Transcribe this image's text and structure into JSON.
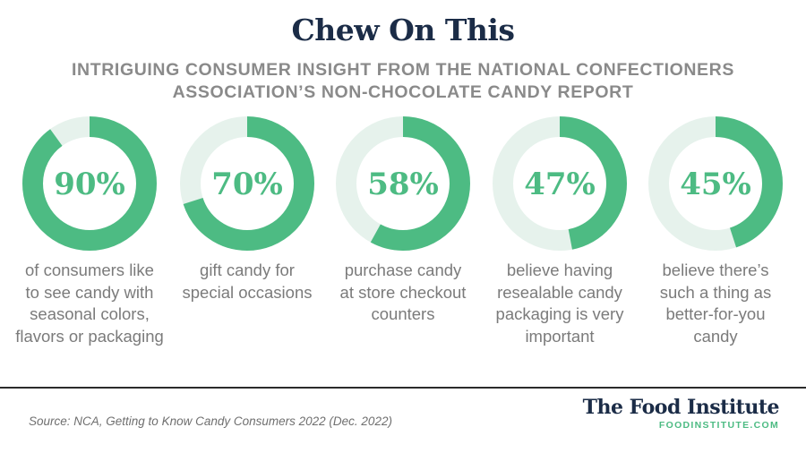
{
  "header": {
    "title": "Chew On This",
    "subtitle": "INTRIGUING CONSUMER INSIGHT FROM THE NATIONAL CONFECTIONERS ASSOCIATION’S NON-CHOCOLATE CANDY REPORT"
  },
  "colors": {
    "accent": "#4dbb83",
    "track": "#e6f2ec",
    "title": "#1b2c47",
    "caption": "#7b7b7b"
  },
  "chart_data": {
    "type": "pie",
    "variant": "donut",
    "unit": "%",
    "items": [
      {
        "value": 90,
        "label": "90%",
        "caption": "of consumers like\nto see candy with\nseasonal colors,\nflavors or packaging"
      },
      {
        "value": 70,
        "label": "70%",
        "caption": "gift candy for\nspecial occasions"
      },
      {
        "value": 58,
        "label": "58%",
        "caption": "purchase candy\nat store checkout\ncounters"
      },
      {
        "value": 47,
        "label": "47%",
        "caption": "believe having\nresealable candy\npackaging is very\nimportant"
      },
      {
        "value": 45,
        "label": "45%",
        "caption": "believe there’s\nsuch a thing as\nbetter-for-you\ncandy"
      }
    ]
  },
  "footer": {
    "source": "Source: NCA, Getting to Know Candy Consumers 2022 (Dec. 2022)",
    "brand_name": "The Food Institute",
    "brand_url": "FOODINSTITUTE.COM"
  }
}
